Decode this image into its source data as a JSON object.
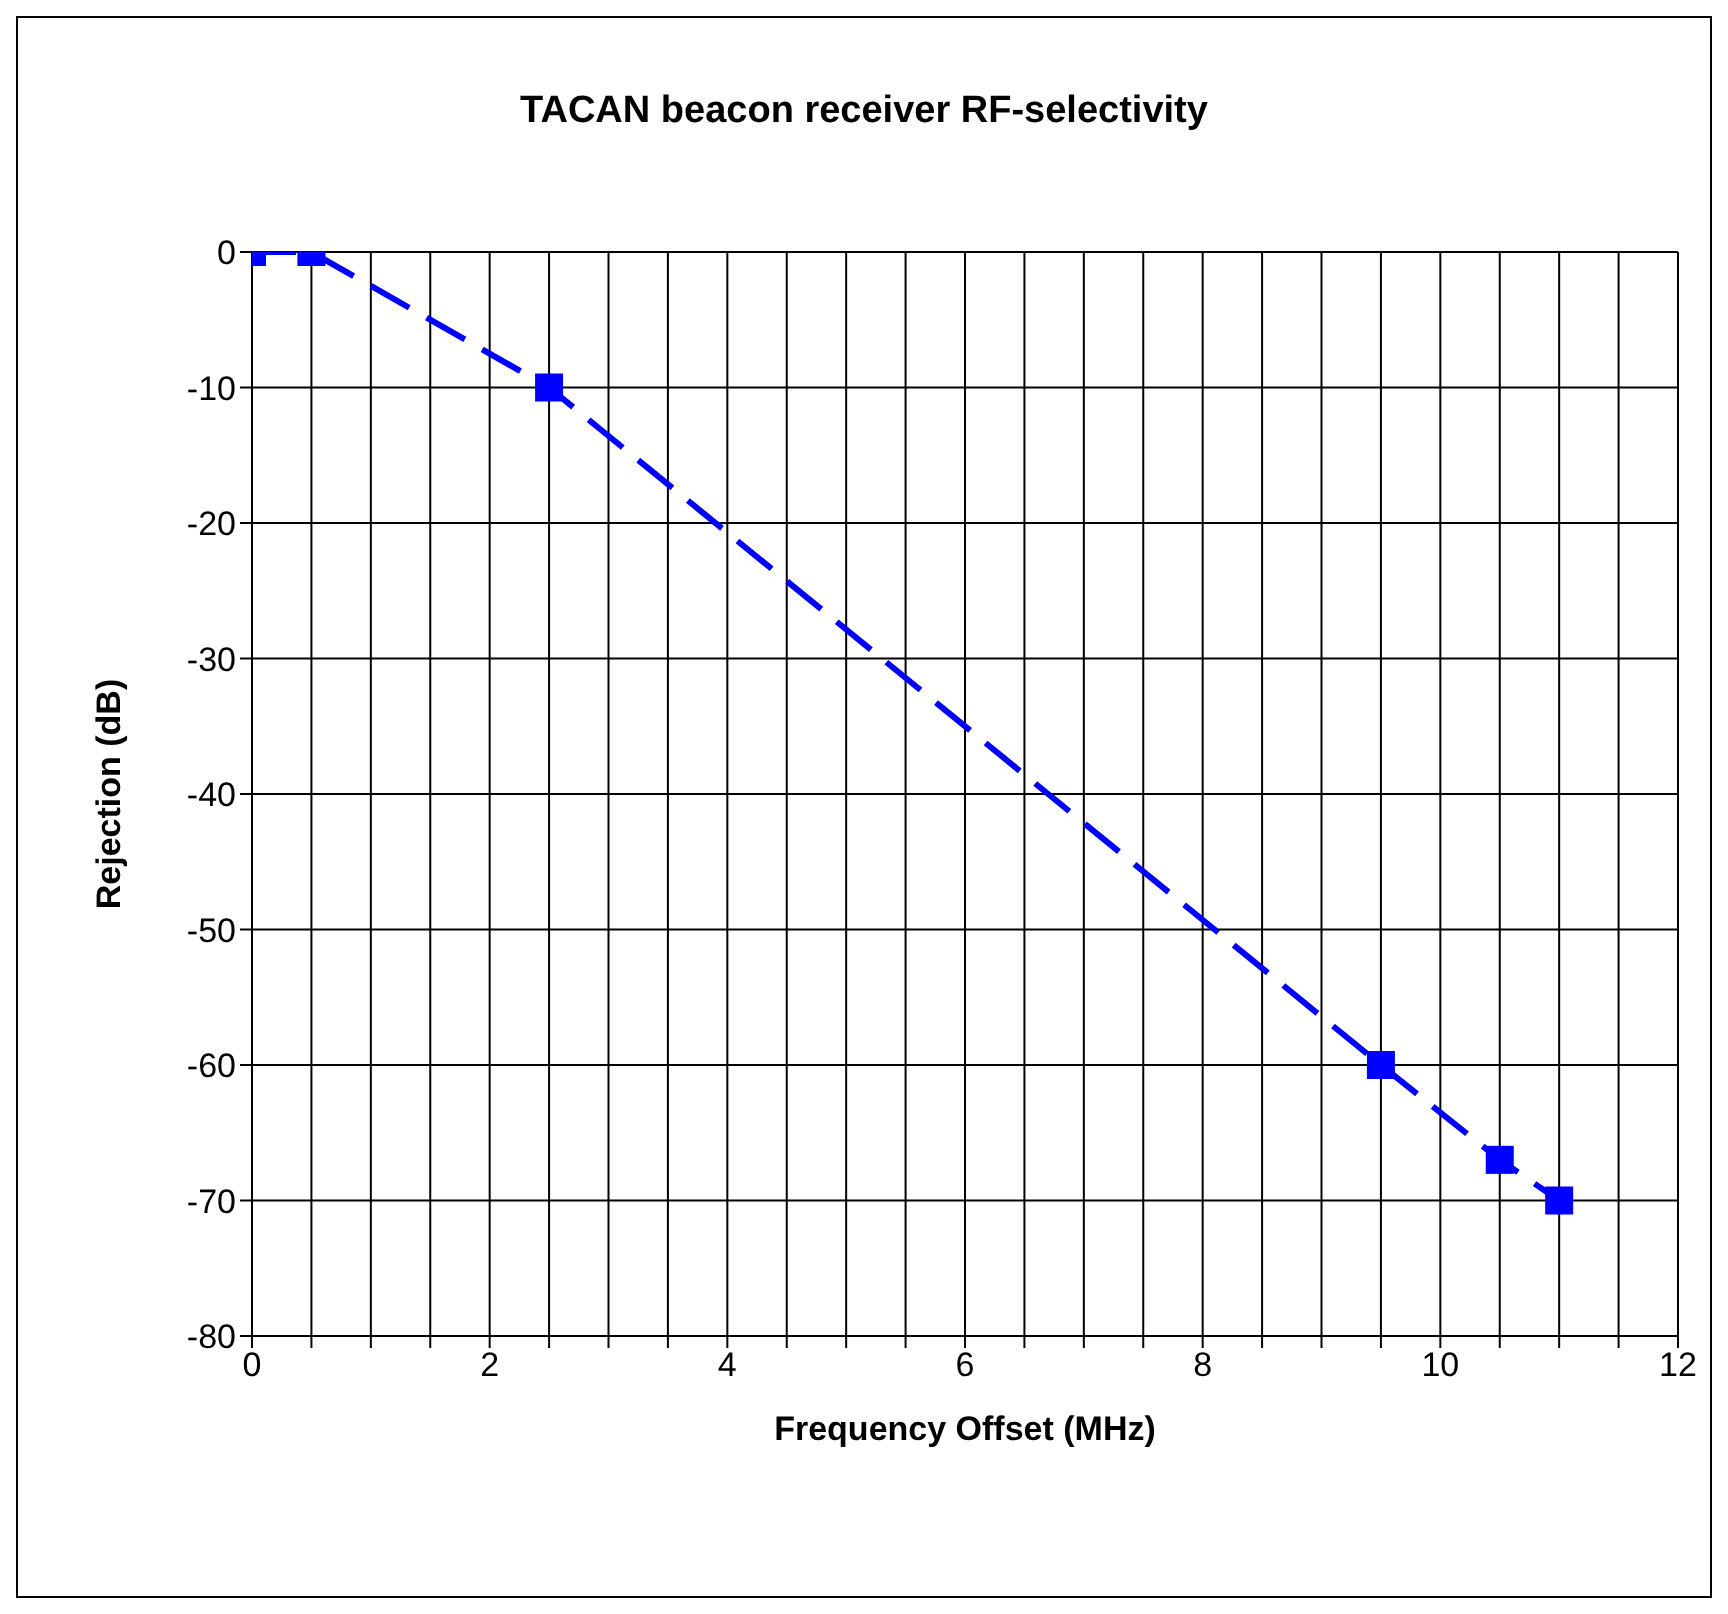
{
  "chart_data": {
    "type": "line",
    "title": "TACAN beacon receiver RF-selectivity",
    "xlabel": "Frequency Offset (MHz)",
    "ylabel": "Rejection (dB)",
    "x": [
      0,
      0.5,
      2.5,
      9.5,
      10.5,
      11
    ],
    "series": [
      {
        "color": "#0000ff",
        "values": [
          0,
          0,
          -10,
          -60,
          -67,
          -70
        ]
      }
    ],
    "xlim": [
      0,
      12
    ],
    "xticks": [
      0,
      {
        "value": 0.5,
        "label": null
      },
      {
        "value": 1,
        "label": null
      },
      {
        "value": 1.5,
        "label": null
      },
      2,
      {
        "value": 2.5,
        "label": null
      },
      {
        "value": 3,
        "label": null
      },
      {
        "value": 3.5,
        "label": null
      },
      4,
      {
        "value": 4.5,
        "label": null
      },
      {
        "value": 5,
        "label": null
      },
      {
        "value": 5.5,
        "label": null
      },
      6,
      {
        "value": 6.5,
        "label": null
      },
      {
        "value": 7,
        "label": null
      },
      {
        "value": 7.5,
        "label": null
      },
      8,
      {
        "value": 8.5,
        "label": null
      },
      {
        "value": 9,
        "label": null
      },
      {
        "value": 9.5,
        "label": null
      },
      10,
      {
        "value": 10.5,
        "label": null
      },
      {
        "value": 11,
        "label": null
      },
      {
        "value": 11.5,
        "label": null
      },
      12
    ],
    "ylim": [
      -80,
      0
    ],
    "yticks": [
      -80,
      -70,
      -60,
      -50,
      -40,
      -30,
      -20,
      -10,
      0
    ],
    "grid": true,
    "marker": "square",
    "line_style": "dashed"
  }
}
